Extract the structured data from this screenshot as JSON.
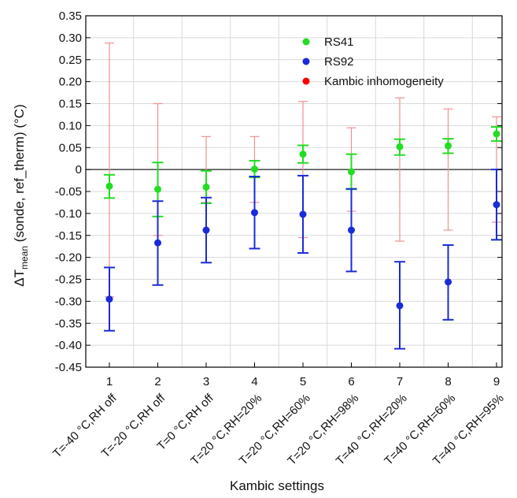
{
  "chart_data": {
    "type": "scatter",
    "title": "",
    "xlabel": "Kambic settings",
    "ylabel_main": "ΔT",
    "ylabel_sub": "mean",
    "ylabel_rest": " (sonde, ref_therm) (°C)",
    "categories": [
      "1",
      "2",
      "3",
      "4",
      "5",
      "6",
      "7",
      "8",
      "9"
    ],
    "settings": [
      "T=-40 °C,RH off",
      "T=-20 °C,RH off",
      "T=0 °C,RH off",
      "T=20 °C,RH=20%",
      "T=20 °C,RH=60%",
      "T=20 °C,RH=98%",
      "T=40 °C,RH=20%",
      "T=40 °C,RH=60%",
      "T=40 °C,RH=95%"
    ],
    "ylim": [
      -0.45,
      0.35
    ],
    "yticks": [
      "-0.45",
      "-0.40",
      "-0.35",
      "-0.30",
      "-0.25",
      "-0.20",
      "-0.15",
      "-0.10",
      "-0.05",
      "0",
      "0.05",
      "0.10",
      "0.15",
      "0.20",
      "0.25",
      "0.30",
      "0.35"
    ],
    "grid": true,
    "legend_position": "top-right",
    "series": [
      {
        "name": "Kambic inhomogeneity",
        "color": "#ff0000",
        "marker": "none",
        "values": [
          0,
          0,
          0,
          0,
          0,
          0,
          0,
          0,
          0
        ],
        "lower": [
          -0.29,
          -0.15,
          -0.075,
          -0.075,
          -0.155,
          -0.095,
          -0.163,
          -0.138,
          -0.12
        ],
        "upper": [
          0.288,
          0.15,
          0.075,
          0.075,
          0.155,
          0.095,
          0.163,
          0.138,
          0.12
        ]
      },
      {
        "name": "RS41",
        "color": "#22dd22",
        "marker": "circle",
        "values": [
          -0.038,
          -0.045,
          -0.04,
          0.001,
          0.035,
          -0.005,
          0.052,
          0.054,
          0.081
        ],
        "lower": [
          -0.065,
          -0.107,
          -0.077,
          -0.018,
          0.015,
          -0.045,
          0.033,
          0.037,
          0.065
        ],
        "upper": [
          -0.012,
          0.016,
          -0.003,
          0.02,
          0.055,
          0.035,
          0.069,
          0.07,
          0.097
        ]
      },
      {
        "name": "RS92",
        "color": "#1a2bd8",
        "marker": "circle",
        "values": [
          -0.295,
          -0.167,
          -0.138,
          -0.098,
          -0.102,
          -0.138,
          -0.31,
          -0.256,
          -0.08
        ],
        "lower": [
          -0.367,
          -0.263,
          -0.212,
          -0.18,
          -0.19,
          -0.232,
          -0.408,
          -0.342,
          -0.16
        ],
        "upper": [
          -0.223,
          -0.072,
          -0.064,
          -0.016,
          -0.014,
          -0.044,
          -0.21,
          -0.172,
          0.0
        ]
      }
    ],
    "legend_order": [
      "RS41",
      "RS92",
      "Kambic inhomogeneity"
    ]
  }
}
